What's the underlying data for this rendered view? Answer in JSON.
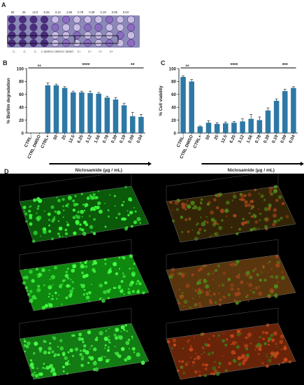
{
  "panels": {
    "a": "A",
    "b": "B",
    "c": "C",
    "d": "D"
  },
  "plate": {
    "top_labels": [
      "50",
      "25",
      "12.5",
      "6.25",
      "3.12",
      "1.56",
      "0.78",
      "0.39",
      "0.19",
      "0.09",
      "0.04"
    ],
    "bottom_labels": [
      "C-",
      "C-",
      "C-",
      "C DMSO",
      "C DMSO",
      "C DMSO",
      "C+",
      "C+",
      "C+",
      "C+"
    ],
    "colors": {
      "dark": "#4b2d7f",
      "mid": "#8a6cc0",
      "light": "#c8bde3",
      "plate_bg": "#8c8ab8"
    }
  },
  "chart_data": [
    {
      "type": "bar",
      "panel": "B",
      "categories": [
        "CTRL-",
        "CTRL DMSO",
        "CTRL+",
        "50",
        "25",
        "12.5",
        "6.25",
        "3.12",
        "1.56",
        "0.78",
        "0.39",
        "0.19",
        "0.09",
        "0.04"
      ],
      "values": [
        0,
        0,
        74,
        74,
        70,
        63,
        63,
        62,
        61,
        55,
        52,
        43,
        26,
        25
      ],
      "errors": [
        0,
        0,
        4,
        2,
        2,
        2,
        2,
        3,
        2,
        2,
        3,
        3,
        6,
        4
      ],
      "ylabel": "% Biofilm degradation",
      "xlabel": "Niclosamide (µg / mL)",
      "ylim": [
        0,
        100
      ],
      "yticks": [
        0,
        20,
        40,
        60,
        80,
        100
      ],
      "significance": [
        {
          "label": "ns",
          "from": 0,
          "to": 2
        },
        {
          "label": "****",
          "from": 2,
          "to": 11
        },
        {
          "label": "**",
          "from": 11,
          "to": 13
        }
      ],
      "bar_color": "#2e78a5"
    },
    {
      "type": "bar",
      "panel": "C",
      "categories": [
        "CTRL-",
        "CTRL DMSO",
        "CTRL+",
        "50",
        "25",
        "12.5",
        "6.25",
        "3.12",
        "1.56",
        "0.78",
        "0.39",
        "0.19",
        "0.09",
        "0.04"
      ],
      "values": [
        87,
        80,
        10,
        16,
        14,
        15,
        16,
        18,
        22,
        20,
        35,
        50,
        65,
        70
      ],
      "errors": [
        2,
        3,
        1,
        3,
        2,
        2,
        2,
        4,
        7,
        5,
        4,
        3,
        3,
        2
      ],
      "ylabel": "% Cell viability",
      "xlabel": "Niclosamide (µg / mL)",
      "ylim": [
        0,
        100
      ],
      "yticks": [
        0,
        20,
        40,
        60,
        80,
        100
      ],
      "significance": [
        {
          "label": "ns",
          "from": 0,
          "to": 1
        },
        {
          "label": "****",
          "from": 1,
          "to": 11
        },
        {
          "label": "***",
          "from": 11,
          "to": 13
        }
      ],
      "bar_color": "#2e78a5"
    }
  ],
  "microscopy": {
    "tiles": [
      {
        "row": 0,
        "col": 0,
        "style": "green",
        "base": "#0c6a0c",
        "spot": "#3cff3c"
      },
      {
        "row": 0,
        "col": 1,
        "style": "mixed",
        "base": "#3d2a08",
        "spot": "#7a8a20"
      },
      {
        "row": 1,
        "col": 0,
        "style": "green",
        "base": "#12a012",
        "spot": "#44ff44"
      },
      {
        "row": 1,
        "col": 1,
        "style": "mixed",
        "base": "#6a4010",
        "spot": "#9a7a20"
      },
      {
        "row": 2,
        "col": 0,
        "style": "green",
        "base": "#169016",
        "spot": "#48ff48"
      },
      {
        "row": 2,
        "col": 1,
        "style": "red",
        "base": "#7a2a0a",
        "spot": "#c04a14"
      }
    ]
  }
}
